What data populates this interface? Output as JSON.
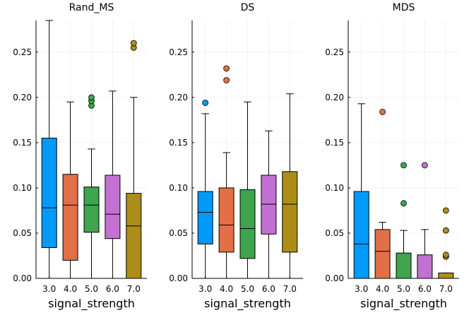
{
  "chart_data": {
    "type": "box",
    "layout": "1x3 panels, shared y-axis range",
    "colors": [
      "#009AFA",
      "#E26F46",
      "#3EA44E",
      "#C271D2",
      "#AC8D18"
    ],
    "categories": [
      "3.0",
      "4.0",
      "5.0",
      "6.0",
      "7.0"
    ],
    "ylim": [
      0.0,
      0.285
    ],
    "yticks": [
      0.0,
      0.05,
      0.1,
      0.15,
      0.2,
      0.25
    ],
    "ytick_labels": [
      "0.00",
      "0.05",
      "0.10",
      "0.15",
      "0.20",
      "0.25"
    ],
    "grid": true,
    "legend": "none",
    "panels": [
      {
        "title": "Rand_MS",
        "xlabel": "signal_strength",
        "boxes": [
          {
            "category": "3.0",
            "min": 0.0,
            "q1": 0.034,
            "median": 0.078,
            "q3": 0.155,
            "max": 0.285,
            "outliers": []
          },
          {
            "category": "4.0",
            "min": 0.0,
            "q1": 0.02,
            "median": 0.081,
            "q3": 0.115,
            "max": 0.195,
            "outliers": []
          },
          {
            "category": "5.0",
            "min": 0.0,
            "q1": 0.051,
            "median": 0.081,
            "q3": 0.101,
            "max": 0.143,
            "outliers": [
              0.191,
              0.196,
              0.2
            ]
          },
          {
            "category": "6.0",
            "min": 0.0,
            "q1": 0.044,
            "median": 0.071,
            "q3": 0.114,
            "max": 0.207,
            "outliers": []
          },
          {
            "category": "7.0",
            "min": 0.0,
            "q1": 0.0,
            "median": 0.058,
            "q3": 0.094,
            "max": 0.2,
            "outliers": [
              0.255,
              0.26
            ]
          }
        ]
      },
      {
        "title": "DS",
        "xlabel": "signal_strength",
        "boxes": [
          {
            "category": "3.0",
            "min": 0.0,
            "q1": 0.038,
            "median": 0.073,
            "q3": 0.096,
            "max": 0.182,
            "outliers": [
              0.194
            ]
          },
          {
            "category": "4.0",
            "min": 0.0,
            "q1": 0.029,
            "median": 0.059,
            "q3": 0.1,
            "max": 0.139,
            "outliers": [
              0.219,
              0.232
            ]
          },
          {
            "category": "5.0",
            "min": 0.0,
            "q1": 0.022,
            "median": 0.055,
            "q3": 0.098,
            "max": 0.195,
            "outliers": []
          },
          {
            "category": "6.0",
            "min": 0.0,
            "q1": 0.049,
            "median": 0.082,
            "q3": 0.114,
            "max": 0.163,
            "outliers": []
          },
          {
            "category": "7.0",
            "min": 0.0,
            "q1": 0.029,
            "median": 0.082,
            "q3": 0.118,
            "max": 0.204,
            "outliers": []
          }
        ]
      },
      {
        "title": "MDS",
        "xlabel": "signal_strength",
        "boxes": [
          {
            "category": "3.0",
            "min": 0.0,
            "q1": 0.0,
            "median": 0.038,
            "q3": 0.096,
            "max": 0.193,
            "outliers": []
          },
          {
            "category": "4.0",
            "min": 0.0,
            "q1": 0.0,
            "median": 0.03,
            "q3": 0.054,
            "max": 0.062,
            "outliers": [
              0.184
            ]
          },
          {
            "category": "5.0",
            "min": 0.0,
            "q1": 0.0,
            "median": 0.0,
            "q3": 0.028,
            "max": 0.053,
            "outliers": [
              0.083,
              0.125
            ]
          },
          {
            "category": "6.0",
            "min": 0.0,
            "q1": 0.0,
            "median": 0.0,
            "q3": 0.026,
            "max": 0.054,
            "outliers": [
              0.125
            ]
          },
          {
            "category": "7.0",
            "min": 0.0,
            "q1": 0.0,
            "median": 0.0,
            "q3": 0.006,
            "max": 0.006,
            "outliers": [
              0.024,
              0.026,
              0.053,
              0.075
            ]
          }
        ]
      }
    ]
  }
}
